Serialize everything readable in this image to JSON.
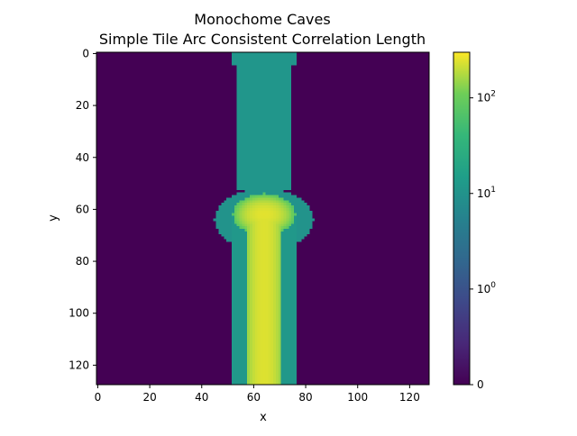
{
  "chart_data": {
    "type": "heatmap",
    "title": "Monochome Caves",
    "subtitle": "Simple Tile Arc Consistent Correlation Length",
    "xlabel": "x",
    "ylabel": "y",
    "grid_size": [
      128,
      128
    ],
    "xlim": [
      0,
      127
    ],
    "ylim": [
      127,
      0
    ],
    "x_ticks": [
      0,
      20,
      40,
      60,
      80,
      100,
      120
    ],
    "y_ticks": [
      0,
      20,
      40,
      60,
      80,
      100,
      120
    ],
    "colorscale": "viridis",
    "color_scale_type": "symlog",
    "color_range": [
      0,
      300
    ],
    "colorbar_ticks": [
      {
        "value": 0,
        "base": "0",
        "exp": ""
      },
      {
        "value": 1,
        "base": "10",
        "exp": "0"
      },
      {
        "value": 10,
        "base": "10",
        "exp": "1"
      },
      {
        "value": 100,
        "base": "10",
        "exp": "2"
      }
    ],
    "background_value": 0,
    "regions": [
      {
        "name": "top cap",
        "x": [
          52,
          76
        ],
        "y": [
          0,
          4
        ],
        "value": 11
      },
      {
        "name": "upper shaft",
        "x": [
          54,
          74
        ],
        "y": [
          0,
          52
        ],
        "value": 11
      },
      {
        "name": "chamber",
        "center": [
          64,
          64
        ],
        "radius": [
          19,
          12
        ],
        "value": 10
      },
      {
        "name": "chamber core",
        "center": [
          64,
          62
        ],
        "radius": [
          12,
          8
        ],
        "value": 250
      },
      {
        "name": "lower shaft",
        "x": [
          52,
          76
        ],
        "y": [
          62,
          127
        ],
        "value": 12
      },
      {
        "name": "lower shaft core",
        "x": [
          58,
          70
        ],
        "y": [
          62,
          127
        ],
        "value": 240
      }
    ]
  }
}
